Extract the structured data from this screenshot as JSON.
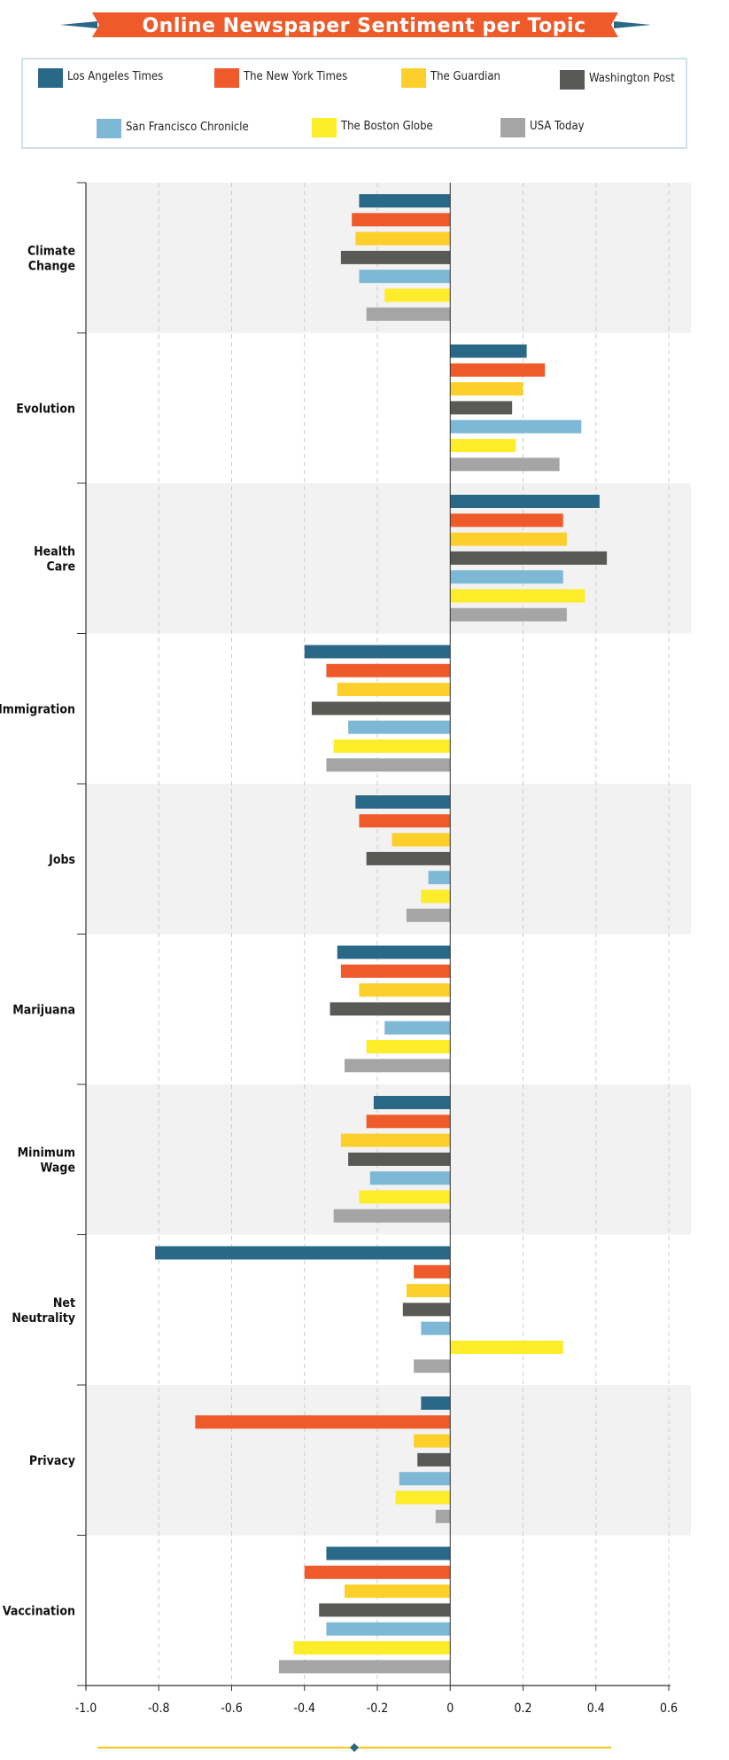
{
  "colors": {
    "title_band": "#ee5a2a",
    "title_side": "#2a6888",
    "legend_border": "#9fc3d6",
    "band": "#f2f2f2",
    "grid": "#cccccc",
    "axis": "#333333",
    "footer_line": "#f5c518",
    "footer_marker": "#2a6888"
  },
  "chart_data": {
    "type": "bar",
    "orientation": "horizontal",
    "title": "Online Newspaper Sentiment per Topic",
    "xlim": [
      -1.0,
      0.6
    ],
    "x_ticks": [
      "-1.0",
      "-0.8",
      "-0.6",
      "-0.4",
      "-0.2",
      "0",
      "0.2",
      "0.4",
      "0.6"
    ],
    "x_tick_values": [
      -1.0,
      -0.8,
      -0.6,
      -0.4,
      -0.2,
      0,
      0.2,
      0.4,
      0.6
    ],
    "grid": true,
    "legend_position": "top",
    "categories": [
      [
        "Climate",
        "Change"
      ],
      [
        "Evolution"
      ],
      [
        "Health",
        "Care"
      ],
      [
        "Immigration"
      ],
      [
        "Jobs"
      ],
      [
        "Marijuana"
      ],
      [
        "Minimum",
        "Wage"
      ],
      [
        "Net",
        "Neutrality"
      ],
      [
        "Privacy"
      ],
      [
        "Vaccination"
      ]
    ],
    "series": [
      {
        "name": "Los Angeles Times",
        "color": "#2a6888",
        "values": [
          -0.25,
          0.21,
          0.41,
          -0.4,
          -0.26,
          -0.31,
          -0.21,
          -0.81,
          -0.08,
          -0.34
        ]
      },
      {
        "name": "The New York Times",
        "color": "#ee5a2a",
        "values": [
          -0.27,
          0.26,
          0.31,
          -0.34,
          -0.25,
          -0.3,
          -0.23,
          -0.1,
          -0.7,
          -0.4
        ]
      },
      {
        "name": "The Guardian",
        "color": "#fccf2a",
        "values": [
          -0.26,
          0.2,
          0.32,
          -0.31,
          -0.16,
          -0.25,
          -0.3,
          -0.12,
          -0.1,
          -0.29
        ]
      },
      {
        "name": "Washington Post",
        "color": "#595955",
        "values": [
          -0.3,
          0.17,
          0.43,
          -0.38,
          -0.23,
          -0.33,
          -0.28,
          -0.13,
          -0.09,
          -0.36
        ]
      },
      {
        "name": "San Francisco Chronicle",
        "color": "#7db9d6",
        "values": [
          -0.25,
          0.36,
          0.31,
          -0.28,
          -0.06,
          -0.18,
          -0.22,
          -0.08,
          -0.14,
          -0.34
        ]
      },
      {
        "name": "The Boston Globe",
        "color": "#fcec2a",
        "values": [
          -0.18,
          0.18,
          0.37,
          -0.32,
          -0.08,
          -0.23,
          -0.25,
          0.31,
          -0.15,
          -0.43
        ]
      },
      {
        "name": "USA Today",
        "color": "#a5a5a5",
        "values": [
          -0.23,
          0.3,
          0.32,
          -0.34,
          -0.12,
          -0.29,
          -0.32,
          -0.1,
          -0.04,
          -0.47
        ]
      }
    ]
  }
}
